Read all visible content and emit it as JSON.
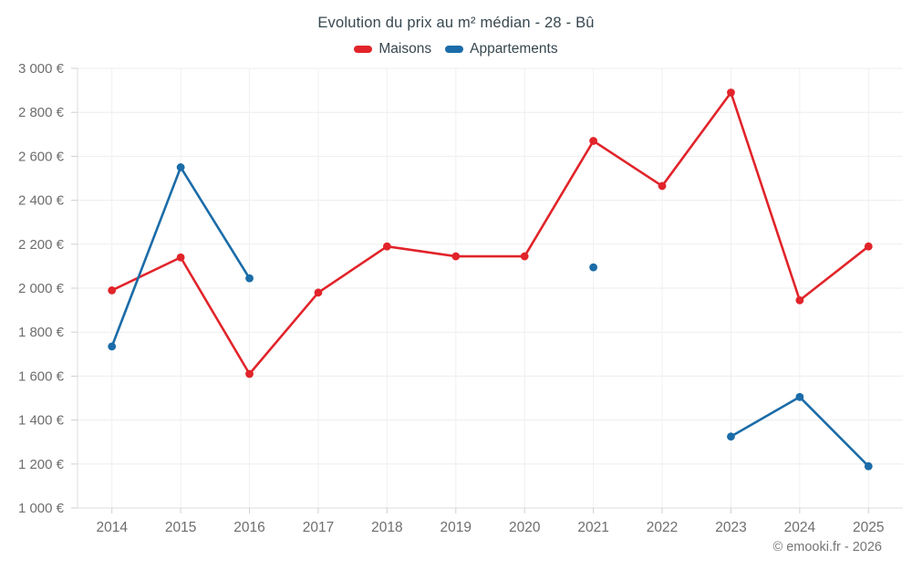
{
  "title": "Evolution du prix au m² médian - 28 - Bû",
  "footer": "© emooki.fr - 2026",
  "legend": [
    {
      "label": "Maisons",
      "color": "#e1242a"
    },
    {
      "label": "Appartements",
      "color": "#1b6ca8"
    }
  ],
  "chart_data": {
    "type": "line",
    "title": "Evolution du prix au m² médian - 28 - Bû",
    "x_labels": [
      "2014",
      "2015",
      "2016",
      "2017",
      "2018",
      "2019",
      "2020",
      "2021",
      "2022",
      "2023",
      "2024",
      "2025"
    ],
    "series": [
      {
        "name": "Maisons",
        "color": "#e1242a",
        "values": [
          1990,
          2140,
          1610,
          1980,
          2190,
          2145,
          2145,
          2670,
          2465,
          2890,
          1945,
          2190
        ]
      },
      {
        "name": "Appartements",
        "color": "#1b6ca8",
        "values": [
          1735,
          2550,
          2045,
          null,
          null,
          null,
          null,
          2095,
          null,
          1325,
          1505,
          1190
        ]
      }
    ],
    "ylim": [
      1000,
      3000
    ],
    "y_ticks": {
      "values": [
        1000,
        1200,
        1400,
        1600,
        1800,
        2000,
        2200,
        2400,
        2600,
        2800,
        3000
      ],
      "labels": [
        "1 000 €",
        "1 200 €",
        "1 400 €",
        "1 600 €",
        "1 800 €",
        "2 000 €",
        "2 200 €",
        "2 400 €",
        "2 600 €",
        "2 800 €",
        "3 000 €"
      ]
    },
    "xlabel": "",
    "ylabel": "",
    "grid": true,
    "legend_position": "top",
    "colors": {
      "grid": "#ededed",
      "axis": "#dcdcdc",
      "tick": "#cfcfcf",
      "tick_label": "#6e6e6e"
    }
  }
}
